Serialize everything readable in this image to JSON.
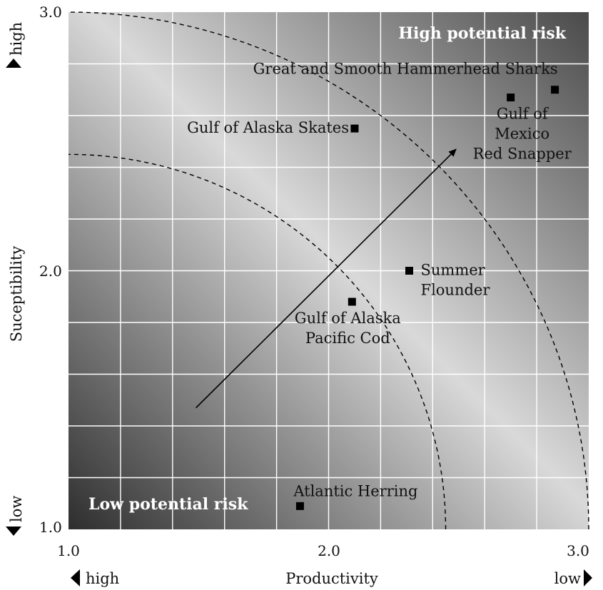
{
  "chart_data": {
    "type": "scatter",
    "xlabel": "Productivity",
    "ylabel": "Suceptibility",
    "xlim": [
      1.0,
      3.0
    ],
    "ylim": [
      1.0,
      3.0
    ],
    "x_ticks": [
      "1.0",
      "2.0",
      "3.0"
    ],
    "y_ticks": [
      "1.0",
      "2.0",
      "3.0"
    ],
    "x_axis_low_end": "high",
    "x_axis_high_end": "low",
    "y_axis_low_end": "low",
    "y_axis_high_end": "high",
    "grid": true,
    "zones": {
      "high": "High potential risk",
      "low": "Low potential risk"
    },
    "points": [
      {
        "x": 2.1,
        "y": 2.55,
        "label": [
          "Gulf of Alaska Skates"
        ]
      },
      {
        "x": 2.7,
        "y": 2.67,
        "label": [
          "Gulf of",
          "Mexico",
          "Red Snapper"
        ]
      },
      {
        "x": 2.87,
        "y": 2.7,
        "label": [
          "Great and Smooth Hammerhead Sharks"
        ]
      },
      {
        "x": 2.31,
        "y": 2.0,
        "label": [
          "Summer",
          "Flounder"
        ]
      },
      {
        "x": 2.09,
        "y": 1.88,
        "label": [
          "Gulf of Alaska",
          "Pacific Cod"
        ]
      },
      {
        "x": 1.89,
        "y": 1.09,
        "label": [
          "Atlantic Herring"
        ]
      }
    ],
    "risk_arcs": [
      {
        "radius": 1.45
      },
      {
        "radius": 2.0
      }
    ],
    "arrow": {
      "from": [
        1.49,
        1.47
      ],
      "to": [
        2.49,
        2.47
      ]
    }
  }
}
